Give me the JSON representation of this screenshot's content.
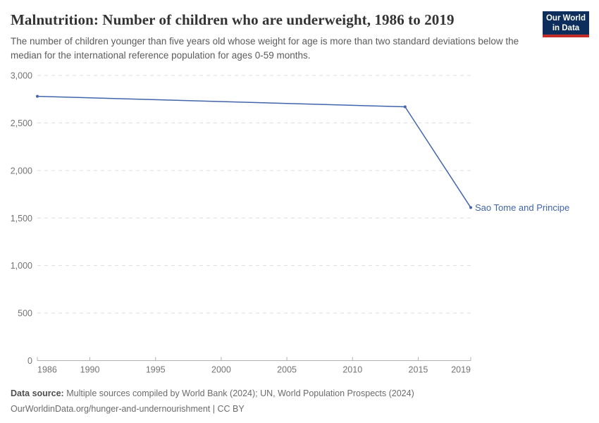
{
  "header": {
    "title": "Malnutrition: Number of children who are underweight, 1986 to 2019",
    "subtitle": "The number of children younger than five years old whose weight for age is more than two standard deviations below the median for the international reference population for ages 0-59 months.",
    "logo": {
      "line1": "Our World",
      "line2": "in Data",
      "bg_color": "#0d2e5c",
      "stripe_color": "#c22d28"
    }
  },
  "chart_data": {
    "type": "line",
    "title": "Malnutrition: Number of children who are underweight, 1986 to 2019",
    "xlabel": "",
    "ylabel": "",
    "xlim": [
      1986,
      2019
    ],
    "ylim": [
      0,
      3000
    ],
    "x_ticks": [
      1986,
      1990,
      1995,
      2000,
      2005,
      2010,
      2015,
      2019
    ],
    "x_tick_labels": [
      "1986",
      "1990",
      "1995",
      "2000",
      "2005",
      "2010",
      "2015",
      "2019"
    ],
    "y_ticks": [
      0,
      500,
      1000,
      1500,
      2000,
      2500,
      3000
    ],
    "y_tick_labels": [
      "0",
      "500",
      "1,000",
      "1,500",
      "2,000",
      "2,500",
      "3,000"
    ],
    "grid": "horizontal-dashed",
    "legend_position": "end-of-line-label",
    "series": [
      {
        "name": "Sao Tome and Principe",
        "color": "#4165ab",
        "points": [
          {
            "x": 1986,
            "y": 2780
          },
          {
            "x": 2014,
            "y": 2670
          },
          {
            "x": 2019,
            "y": 1610
          }
        ]
      }
    ]
  },
  "footer": {
    "source_label": "Data source:",
    "source_text": "Multiple sources compiled by World Bank (2024); UN, World Population Prospects (2024)",
    "attribution": "OurWorldinData.org/hunger-and-undernourishment | CC BY"
  },
  "colors": {
    "line": "#4165ab",
    "grid": "#dddddd",
    "axis": "#b0b0b0",
    "tick_label": "#737373",
    "title": "#333333",
    "subtitle": "#5b5b5b"
  }
}
